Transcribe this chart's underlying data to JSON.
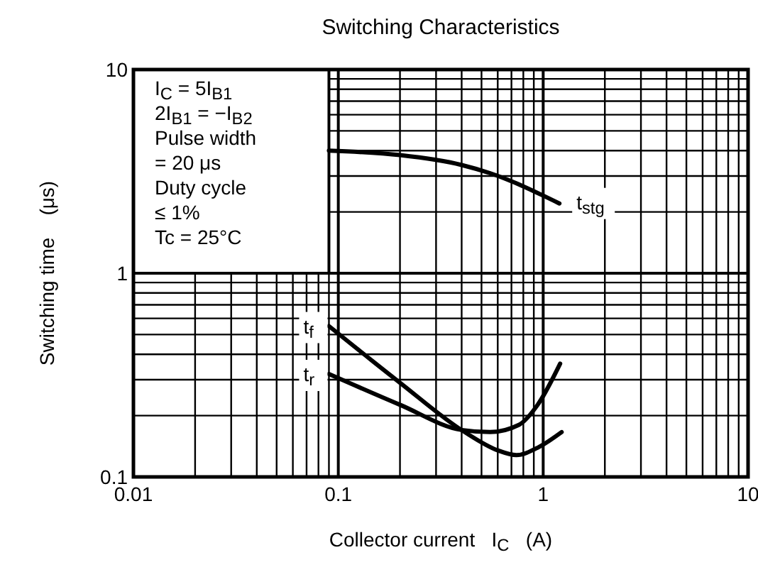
{
  "chart_data": {
    "type": "line",
    "title": "Switching Characteristics",
    "xlabel": "Collector current   I$_{C}$   (A)",
    "ylabel": "Switching time    (μs)",
    "log": "xy",
    "grid": true,
    "marker": "none",
    "line_style": "solid",
    "xlim": [
      0.01,
      10
    ],
    "ylim": [
      0.1,
      10
    ],
    "xticks": [
      0.01,
      {
        "value": 0.02,
        "label": null
      },
      {
        "value": 0.03,
        "label": null
      },
      {
        "value": 0.04,
        "label": null
      },
      {
        "value": 0.05,
        "label": null
      },
      {
        "value": 0.06,
        "label": null
      },
      {
        "value": 0.07,
        "label": null
      },
      {
        "value": 0.08,
        "label": null
      },
      {
        "value": 0.09,
        "label": null
      },
      0.1,
      {
        "value": 0.2,
        "label": null
      },
      {
        "value": 0.3,
        "label": null
      },
      {
        "value": 0.4,
        "label": null
      },
      {
        "value": 0.5,
        "label": null
      },
      {
        "value": 0.6,
        "label": null
      },
      {
        "value": 0.7,
        "label": null
      },
      {
        "value": 0.8,
        "label": null
      },
      {
        "value": 0.9,
        "label": null
      },
      1,
      {
        "value": 2,
        "label": null
      },
      {
        "value": 3,
        "label": null
      },
      {
        "value": 4,
        "label": null
      },
      {
        "value": 5,
        "label": null
      },
      {
        "value": 6,
        "label": null
      },
      {
        "value": 7,
        "label": null
      },
      {
        "value": 8,
        "label": null
      },
      {
        "value": 9,
        "label": null
      },
      10
    ],
    "yticks": [
      0.1,
      {
        "value": 0.2,
        "label": null
      },
      {
        "value": 0.3,
        "label": null
      },
      {
        "value": 0.4,
        "label": null
      },
      {
        "value": 0.5,
        "label": null
      },
      {
        "value": 0.6,
        "label": null
      },
      {
        "value": 0.7,
        "label": null
      },
      {
        "value": 0.8,
        "label": null
      },
      {
        "value": 0.9,
        "label": null
      },
      1,
      {
        "value": 2,
        "label": null
      },
      {
        "value": 3,
        "label": null
      },
      {
        "value": 4,
        "label": null
      },
      {
        "value": 5,
        "label": null
      },
      {
        "value": 6,
        "label": null
      },
      {
        "value": 7,
        "label": null
      },
      {
        "value": 8,
        "label": null
      },
      {
        "value": 9,
        "label": null
      },
      10
    ],
    "series": [
      {
        "name": "t$_{stg}$",
        "color": "#000000",
        "x": [
          0.09,
          0.2,
          0.4,
          0.55,
          1.2
        ],
        "values": [
          4.0,
          3.8,
          3.4,
          3.1,
          2.2
        ]
      },
      {
        "name": "t$_{f}$",
        "color": "#000000",
        "x": [
          0.09,
          0.2,
          0.41,
          0.6,
          0.74,
          0.95,
          1.23
        ],
        "values": [
          0.55,
          0.29,
          0.167,
          0.135,
          0.128,
          0.14,
          0.166
        ]
      },
      {
        "name": "t$_{r}$",
        "color": "#000000",
        "x": [
          0.09,
          0.2,
          0.4,
          0.55,
          0.76,
          0.94,
          1.21
        ],
        "values": [
          0.32,
          0.226,
          0.17,
          0.166,
          0.18,
          0.226,
          0.36
        ]
      }
    ],
    "annotations": [
      "I$_{C}$ = 5I$_{B1}$",
      "2I$_{B1}$ = −I$_{B2}$",
      "Pulse width",
      "= 20 μs",
      "Duty cycle",
      "≤ 1%",
      "Tc = 25°C"
    ]
  }
}
